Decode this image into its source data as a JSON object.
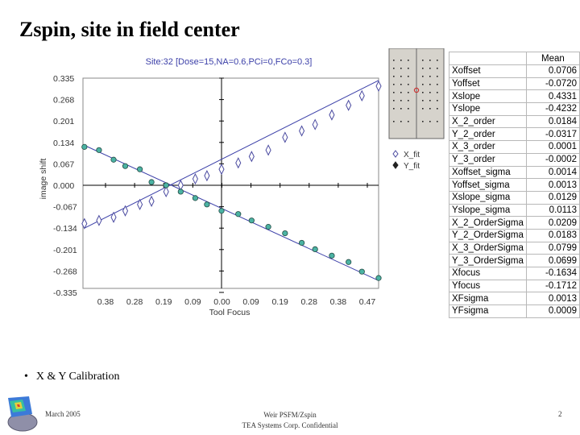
{
  "slide": {
    "title": "Zspin, site in field center",
    "bullet": "X & Y Calibration",
    "footer_date": "March 2005",
    "footer_line1": "Weir PSFM/Zspin",
    "footer_line2": "TEA Systems Corp. Confidential",
    "page_number": "2"
  },
  "table": {
    "header": "Mean",
    "rows": [
      {
        "name": "Xoffset",
        "value": "0.0706"
      },
      {
        "name": "Yoffset",
        "value": "-0.0720"
      },
      {
        "name": "Xslope",
        "value": "0.4331"
      },
      {
        "name": "Yslope",
        "value": "-0.4232"
      },
      {
        "name": "X_2_order",
        "value": "0.0184"
      },
      {
        "name": "Y_2_order",
        "value": "-0.0317"
      },
      {
        "name": "X_3_order",
        "value": "0.0001"
      },
      {
        "name": "Y_3_order",
        "value": "-0.0002"
      },
      {
        "name": "Xoffset_sigma",
        "value": "0.0014"
      },
      {
        "name": "Yoffset_sigma",
        "value": "0.0013"
      },
      {
        "name": "Xslope_sigma",
        "value": "0.0129"
      },
      {
        "name": "Yslope_sigma",
        "value": "0.0113"
      },
      {
        "name": "X_2_OrderSigma",
        "value": "0.0209"
      },
      {
        "name": "Y_2_OrderSigma",
        "value": "0.0183"
      },
      {
        "name": "X_3_OrderSigma",
        "value": "0.0799"
      },
      {
        "name": "Y_3_OrderSigma",
        "value": "0.0699"
      },
      {
        "name": "Xfocus",
        "value": "-0.1634"
      },
      {
        "name": "Yfocus",
        "value": "-0.1712"
      },
      {
        "name": "XFsigma",
        "value": "0.0013"
      },
      {
        "name": "YFsigma",
        "value": "0.0009"
      }
    ]
  },
  "colors": {
    "fit_line": "#3b3fa8",
    "x_marker_stroke": "#4a4aa0",
    "y_marker_fill": "#4bb3a3",
    "y_marker_stroke": "#244a44",
    "site_panel_bg": "#d6d3cc",
    "site_marker": "#cc3333",
    "title_color": "#3b3fa8"
  },
  "chart_data": {
    "type": "scatter",
    "title": "Site:32 [Dose=15,NA=0.6,PCi=0,FCo=0.3]",
    "xlabel": "Tool Focus",
    "ylabel": "image shift",
    "x_tick_labels": [
      "0.38",
      "0.28",
      "0.19",
      "0.09",
      "0.00",
      "0.09",
      "0.19",
      "0.28",
      "0.38",
      "0.47"
    ],
    "y_tick_labels": [
      "0.335",
      "0.268",
      "0.201",
      "0.134",
      "0.067",
      "0.000",
      "-0.067",
      "-0.134",
      "-0.201",
      "-0.268",
      "-0.335"
    ],
    "xlim": [
      -0.475,
      0.47
    ],
    "ylim": [
      -0.335,
      0.335
    ],
    "legend": {
      "placement": "right",
      "entries": [
        "X_fit",
        "Y_fit"
      ]
    },
    "series": [
      {
        "name": "X_fit",
        "marker": "diamond-open",
        "x": [
          -0.47,
          -0.42,
          -0.37,
          -0.33,
          -0.28,
          -0.24,
          -0.19,
          -0.14,
          -0.09,
          -0.05,
          0.0,
          0.05,
          0.09,
          0.14,
          0.19,
          0.24,
          0.28,
          0.33,
          0.38,
          0.42,
          0.47
        ],
        "y": [
          -0.12,
          -0.11,
          -0.1,
          -0.08,
          -0.06,
          -0.05,
          -0.02,
          0.0,
          0.02,
          0.03,
          0.05,
          0.07,
          0.09,
          0.11,
          0.15,
          0.17,
          0.19,
          0.22,
          0.25,
          0.28,
          0.31
        ]
      },
      {
        "name": "Y_fit",
        "marker": "circle-filled",
        "x": [
          -0.47,
          -0.42,
          -0.37,
          -0.33,
          -0.28,
          -0.24,
          -0.19,
          -0.14,
          -0.09,
          -0.05,
          0.0,
          0.05,
          0.09,
          0.14,
          0.19,
          0.24,
          0.28,
          0.33,
          0.38,
          0.42,
          0.47
        ],
        "y": [
          0.12,
          0.11,
          0.08,
          0.06,
          0.05,
          0.01,
          0.0,
          -0.02,
          -0.04,
          -0.06,
          -0.08,
          -0.09,
          -0.11,
          -0.13,
          -0.15,
          -0.18,
          -0.2,
          -0.22,
          -0.24,
          -0.27,
          -0.29
        ]
      }
    ],
    "fit_lines": [
      {
        "name": "X_fit",
        "from": [
          -0.47,
          -0.134
        ],
        "to": [
          0.47,
          0.328
        ]
      },
      {
        "name": "Y_fit",
        "from": [
          -0.47,
          0.125
        ],
        "to": [
          0.47,
          -0.298
        ]
      }
    ]
  }
}
